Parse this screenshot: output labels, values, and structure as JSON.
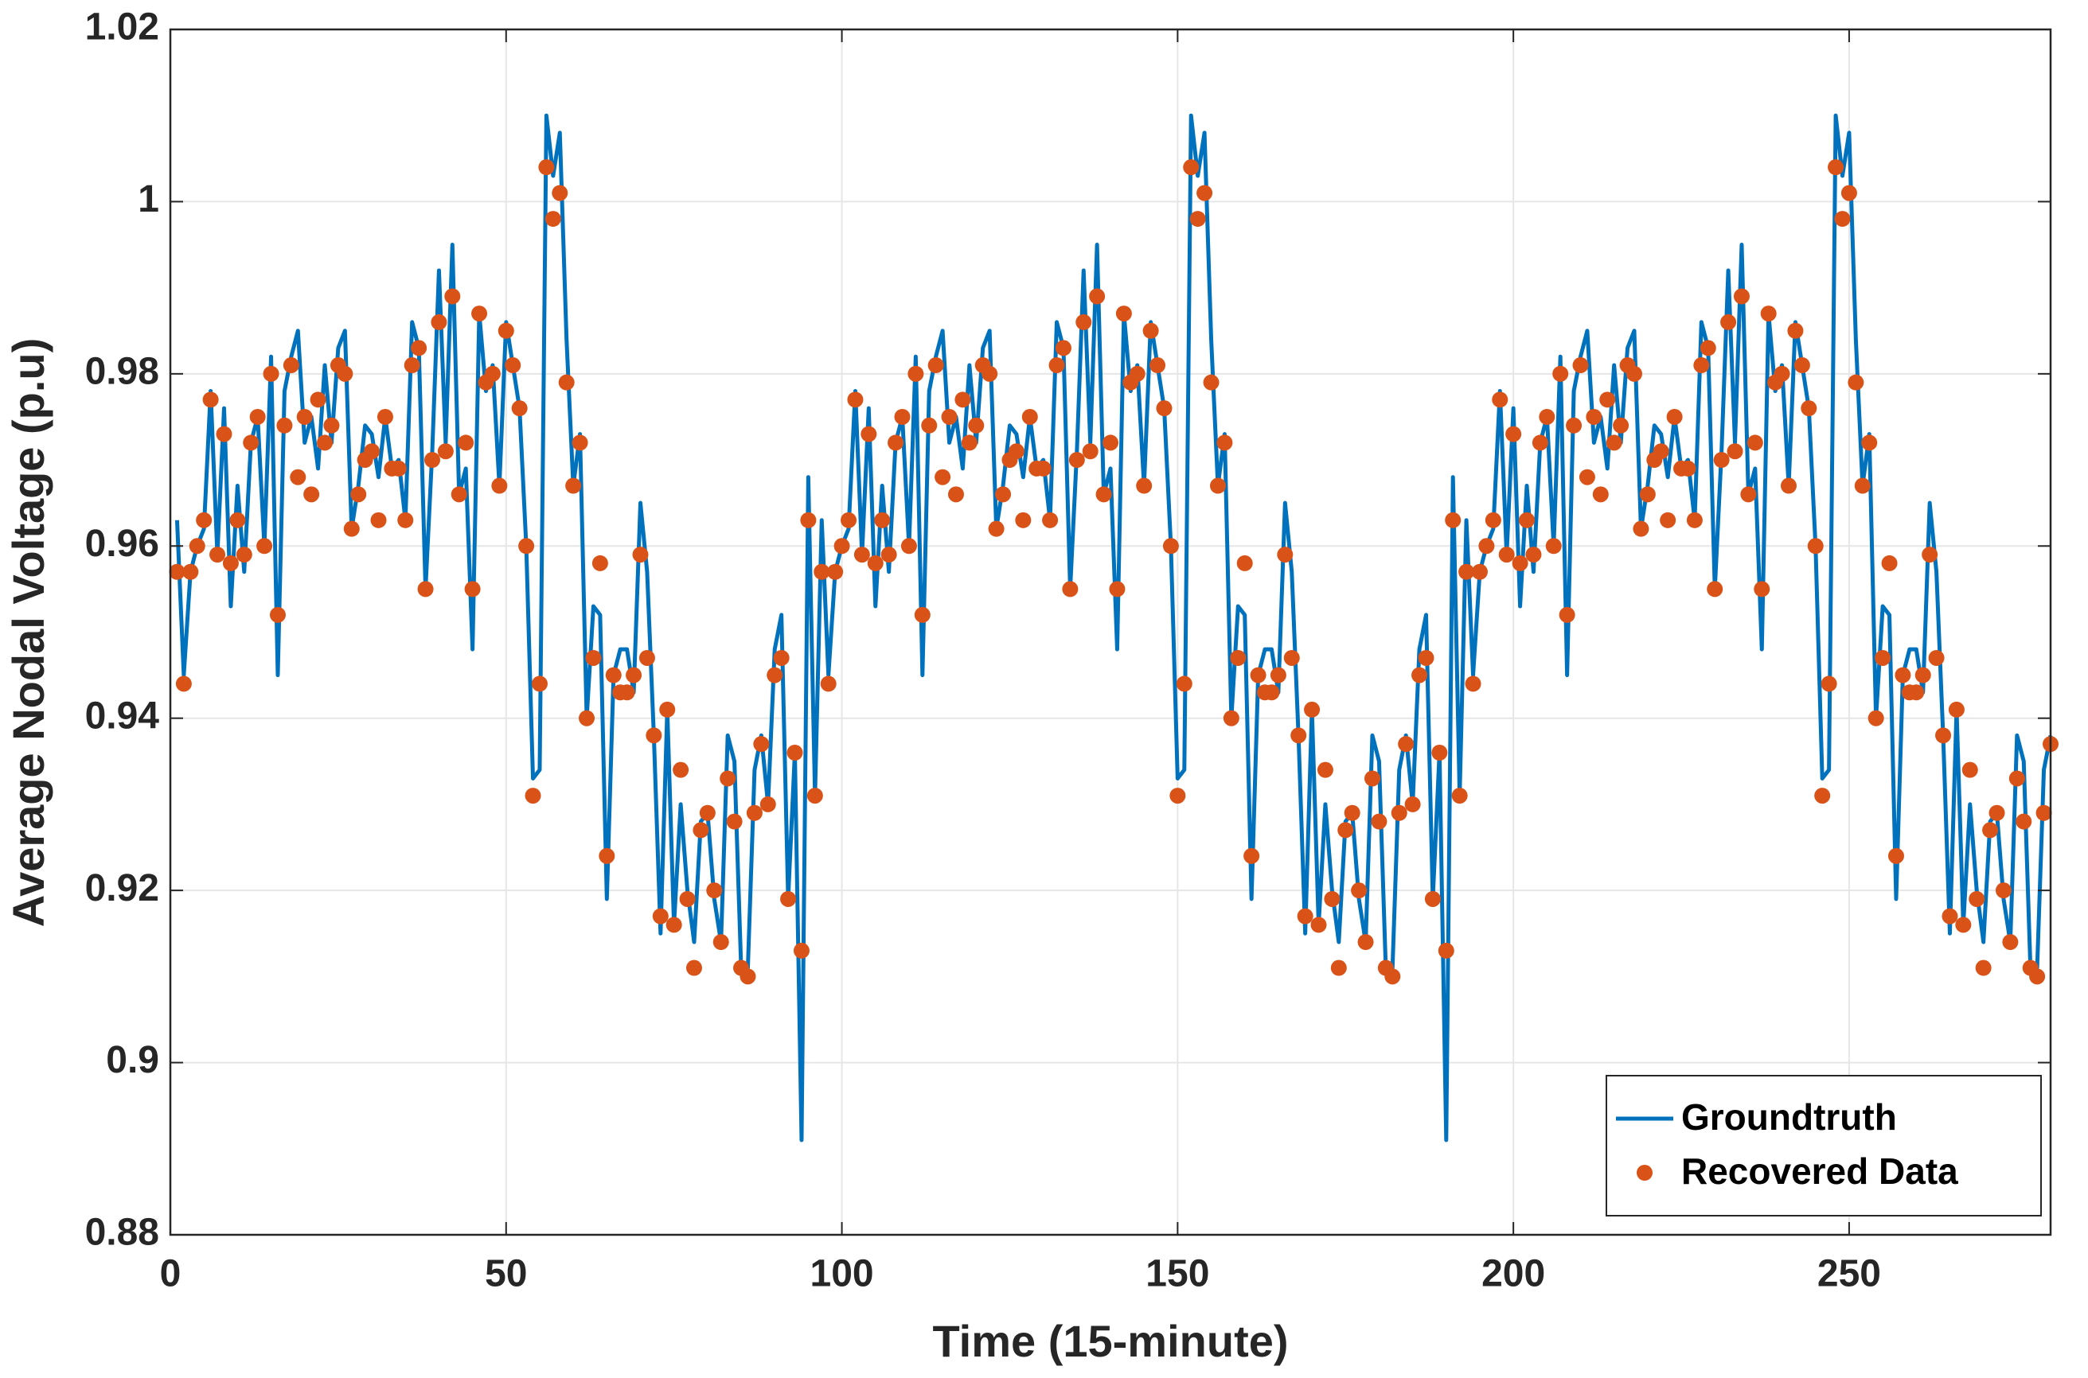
{
  "chart_data": {
    "type": "line",
    "xlabel": "Time (15-minute)",
    "ylabel": "Average Nodal Voltage (p.u)",
    "xlim": [
      0,
      280
    ],
    "ylim": [
      0.88,
      1.02
    ],
    "xticks": [
      0,
      50,
      100,
      150,
      200,
      250
    ],
    "yticks": [
      0.88,
      0.9,
      0.92,
      0.94,
      0.96,
      0.98,
      1,
      1.02
    ],
    "grid": true,
    "legend": "southeast",
    "x": [
      1,
      2,
      3,
      4,
      5,
      6,
      7,
      8,
      9,
      10,
      11,
      12,
      13,
      14,
      15,
      16,
      17,
      18,
      19,
      20,
      21,
      22,
      23,
      24,
      25,
      26,
      27,
      28,
      29,
      30,
      31,
      32,
      33,
      34,
      35,
      36,
      37,
      38,
      39,
      40,
      41,
      42,
      43,
      44,
      45,
      46,
      47,
      48,
      49,
      50,
      51,
      52,
      53,
      54,
      55,
      56,
      57,
      58,
      59,
      60,
      61,
      62,
      63,
      64,
      65,
      66,
      67,
      68,
      69,
      70,
      71,
      72,
      73,
      74,
      75,
      76,
      77,
      78,
      79,
      80,
      81,
      82,
      83,
      84,
      85,
      86,
      87,
      88,
      89,
      90,
      91,
      92,
      93,
      94,
      95,
      96,
      97,
      98,
      99,
      100,
      101,
      102,
      103,
      104,
      105,
      106,
      107,
      108,
      109,
      110,
      111,
      112,
      113,
      114,
      115,
      116,
      117,
      118,
      119,
      120,
      121,
      122,
      123,
      124,
      125,
      126,
      127,
      128,
      129,
      130,
      131,
      132,
      133,
      134,
      135,
      136,
      137,
      138,
      139,
      140,
      141,
      142,
      143,
      144,
      145,
      146,
      147,
      148,
      149,
      150,
      151,
      152,
      153,
      154,
      155,
      156,
      157,
      158,
      159,
      160,
      161,
      162,
      163,
      164,
      165,
      166,
      167,
      168,
      169,
      170,
      171,
      172,
      173,
      174,
      175,
      176,
      177,
      178,
      179,
      180,
      181,
      182,
      183,
      184,
      185,
      186,
      187,
      188,
      189,
      190,
      191,
      192,
      193,
      194,
      195,
      196,
      197,
      198,
      199,
      200,
      201,
      202,
      203,
      204,
      205,
      206,
      207,
      208,
      209,
      210,
      211,
      212,
      213,
      214,
      215,
      216,
      217,
      218,
      219,
      220,
      221,
      222,
      223,
      224,
      225,
      226,
      227,
      228,
      229,
      230,
      231,
      232,
      233,
      234,
      235,
      236,
      237,
      238,
      239,
      240,
      241,
      242,
      243,
      244,
      245,
      246,
      247,
      248,
      249,
      250,
      251,
      252,
      253,
      254,
      255,
      256,
      257,
      258,
      259,
      260,
      261,
      262,
      263,
      264,
      265,
      266,
      267,
      268,
      269,
      270,
      271,
      272,
      273,
      274,
      275,
      276,
      277,
      278,
      279,
      280
    ],
    "series": [
      {
        "name": "Groundtruth",
        "color": "#0072BD",
        "style": "line",
        "values": [
          0.963,
          0.945,
          0.957,
          0.96,
          0.962,
          0.978,
          0.959,
          0.976,
          0.953,
          0.967,
          0.957,
          0.972,
          0.975,
          0.96,
          0.982,
          0.945,
          0.978,
          0.982,
          0.985,
          0.972,
          0.975,
          0.969,
          0.981,
          0.972,
          0.983,
          0.985,
          0.962,
          0.967,
          0.974,
          0.973,
          0.968,
          0.975,
          0.969,
          0.97,
          0.963,
          0.986,
          0.983,
          0.955,
          0.971,
          0.992,
          0.972,
          0.995,
          0.966,
          0.969,
          0.948,
          0.987,
          0.978,
          0.981,
          0.967,
          0.986,
          0.981,
          0.976,
          0.96,
          0.933,
          0.934,
          1.01,
          1.003,
          1.008,
          0.984,
          0.967,
          0.973,
          0.94,
          0.953,
          0.952,
          0.919,
          0.945,
          0.948,
          0.948,
          0.943,
          0.965,
          0.957,
          0.938,
          0.915,
          0.941,
          0.916,
          0.93,
          0.92,
          0.914,
          0.928,
          0.929,
          0.919,
          0.914,
          0.938,
          0.935,
          0.911,
          0.911,
          0.934,
          0.938,
          0.93,
          0.948,
          0.952,
          0.919,
          0.936,
          0.891,
          0.968,
          0.931,
          0.963,
          0.945,
          0.957,
          0.96,
          0.962,
          0.978,
          0.959,
          0.976,
          0.953,
          0.967,
          0.957,
          0.972,
          0.975,
          0.96,
          0.982,
          0.945,
          0.978,
          0.982,
          0.985,
          0.972,
          0.975,
          0.969,
          0.981,
          0.972,
          0.983,
          0.985,
          0.962,
          0.967,
          0.974,
          0.973,
          0.968,
          0.975,
          0.969,
          0.97,
          0.963,
          0.986,
          0.983,
          0.955,
          0.971,
          0.992,
          0.972,
          0.995,
          0.966,
          0.969,
          0.948,
          0.987,
          0.978,
          0.981,
          0.967,
          0.986,
          0.981,
          0.976,
          0.96,
          0.933,
          0.934,
          1.01,
          1.003,
          1.008,
          0.984,
          0.967,
          0.973,
          0.94,
          0.953,
          0.952,
          0.919,
          0.945,
          0.948,
          0.948,
          0.943,
          0.965,
          0.957,
          0.938,
          0.915,
          0.941,
          0.916,
          0.93,
          0.92,
          0.914,
          0.928,
          0.929,
          0.919,
          0.914,
          0.938,
          0.935,
          0.911,
          0.911,
          0.934,
          0.938,
          0.93,
          0.948,
          0.952,
          0.919,
          0.936,
          0.891,
          0.968,
          0.931,
          0.963,
          0.945,
          0.957,
          0.96,
          0.962,
          0.978,
          0.959,
          0.976,
          0.953,
          0.967,
          0.957,
          0.972,
          0.975,
          0.96,
          0.982,
          0.945,
          0.978,
          0.982,
          0.985,
          0.972,
          0.975,
          0.969,
          0.981,
          0.972,
          0.983,
          0.985,
          0.962,
          0.967,
          0.974,
          0.973,
          0.968,
          0.975,
          0.969,
          0.97,
          0.963,
          0.986,
          0.983,
          0.955,
          0.971,
          0.992,
          0.972,
          0.995,
          0.966,
          0.969,
          0.948,
          0.987,
          0.978,
          0.981,
          0.967,
          0.986,
          0.981,
          0.976,
          0.96,
          0.933,
          0.934,
          1.01,
          1.003,
          1.008,
          0.984,
          0.967,
          0.973,
          0.94,
          0.953,
          0.952,
          0.919,
          0.945,
          0.948,
          0.948,
          0.943,
          0.965,
          0.957,
          0.938,
          0.915,
          0.941,
          0.916,
          0.93,
          0.92,
          0.914,
          0.928,
          0.929,
          0.919,
          0.914,
          0.938,
          0.935,
          0.911,
          0.911,
          0.934,
          0.938
        ]
      },
      {
        "name": "Recovered Data",
        "color": "#D95319",
        "style": "markers",
        "values": [
          0.957,
          0.944,
          0.957,
          0.96,
          0.963,
          0.977,
          0.959,
          0.973,
          0.958,
          0.963,
          0.959,
          0.972,
          0.975,
          0.96,
          0.98,
          0.952,
          0.974,
          0.981,
          0.968,
          0.975,
          0.966,
          0.977,
          0.972,
          0.974,
          0.981,
          0.98,
          0.962,
          0.966,
          0.97,
          0.971,
          0.963,
          0.975,
          0.969,
          0.969,
          0.963,
          0.981,
          0.983,
          0.955,
          0.97,
          0.986,
          0.971,
          0.989,
          0.966,
          0.972,
          0.955,
          0.987,
          0.979,
          0.98,
          0.967,
          0.985,
          0.981,
          0.976,
          0.96,
          0.931,
          0.944,
          1.004,
          0.998,
          1.001,
          0.979,
          0.967,
          0.972,
          0.94,
          0.947,
          0.958,
          0.924,
          0.945,
          0.943,
          0.943,
          0.945,
          0.959,
          0.947,
          0.938,
          0.917,
          0.941,
          0.916,
          0.934,
          0.919,
          0.911,
          0.927,
          0.929,
          0.92,
          0.914,
          0.933,
          0.928,
          0.911,
          0.91,
          0.929,
          0.937,
          0.93,
          0.945,
          0.947,
          0.919,
          0.936,
          0.913,
          0.963,
          0.931,
          0.957,
          0.944,
          0.957,
          0.96,
          0.963,
          0.977,
          0.959,
          0.973,
          0.958,
          0.963,
          0.959,
          0.972,
          0.975,
          0.96,
          0.98,
          0.952,
          0.974,
          0.981,
          0.968,
          0.975,
          0.966,
          0.977,
          0.972,
          0.974,
          0.981,
          0.98,
          0.962,
          0.966,
          0.97,
          0.971,
          0.963,
          0.975,
          0.969,
          0.969,
          0.963,
          0.981,
          0.983,
          0.955,
          0.97,
          0.986,
          0.971,
          0.989,
          0.966,
          0.972,
          0.955,
          0.987,
          0.979,
          0.98,
          0.967,
          0.985,
          0.981,
          0.976,
          0.96,
          0.931,
          0.944,
          1.004,
          0.998,
          1.001,
          0.979,
          0.967,
          0.972,
          0.94,
          0.947,
          0.958,
          0.924,
          0.945,
          0.943,
          0.943,
          0.945,
          0.959,
          0.947,
          0.938,
          0.917,
          0.941,
          0.916,
          0.934,
          0.919,
          0.911,
          0.927,
          0.929,
          0.92,
          0.914,
          0.933,
          0.928,
          0.911,
          0.91,
          0.929,
          0.937,
          0.93,
          0.945,
          0.947,
          0.919,
          0.936,
          0.913,
          0.963,
          0.931,
          0.957,
          0.944,
          0.957,
          0.96,
          0.963,
          0.977,
          0.959,
          0.973,
          0.958,
          0.963,
          0.959,
          0.972,
          0.975,
          0.96,
          0.98,
          0.952,
          0.974,
          0.981,
          0.968,
          0.975,
          0.966,
          0.977,
          0.972,
          0.974,
          0.981,
          0.98,
          0.962,
          0.966,
          0.97,
          0.971,
          0.963,
          0.975,
          0.969,
          0.969,
          0.963,
          0.981,
          0.983,
          0.955,
          0.97,
          0.986,
          0.971,
          0.989,
          0.966,
          0.972,
          0.955,
          0.987,
          0.979,
          0.98,
          0.967,
          0.985,
          0.981,
          0.976,
          0.96,
          0.931,
          0.944,
          1.004,
          0.998,
          1.001,
          0.979,
          0.967,
          0.972,
          0.94,
          0.947,
          0.958,
          0.924,
          0.945,
          0.943,
          0.943,
          0.945,
          0.959,
          0.947,
          0.938,
          0.917,
          0.941,
          0.916,
          0.934,
          0.919,
          0.911,
          0.927,
          0.929,
          0.92,
          0.914,
          0.933,
          0.928,
          0.911,
          0.91,
          0.929,
          0.937
        ]
      }
    ]
  }
}
